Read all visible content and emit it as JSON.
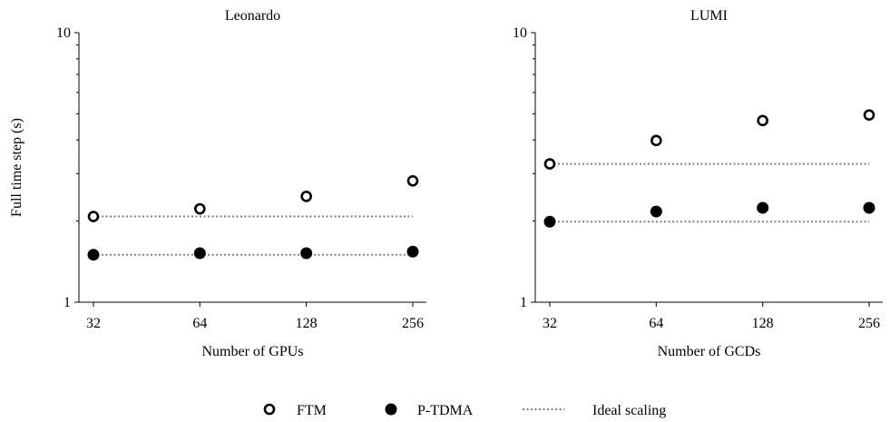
{
  "chart_data": [
    {
      "type": "scatter",
      "title": "Leonardo",
      "xlabel": "Number of GPUs",
      "ylabel": "Full time step (s)",
      "x_scale": "log2",
      "y_scale": "log10",
      "x": [
        32,
        64,
        128,
        256
      ],
      "xlim": [
        32,
        256
      ],
      "ylim": [
        1,
        10
      ],
      "x_tick_labels": [
        "32",
        "64",
        "128",
        "256"
      ],
      "y_tick_labels": [
        "1",
        "10"
      ],
      "series": [
        {
          "name": "FTM",
          "marker": "open-circle",
          "values": [
            2.08,
            2.22,
            2.47,
            2.82
          ]
        },
        {
          "name": "P-TDMA",
          "marker": "filled-circle",
          "values": [
            1.5,
            1.52,
            1.52,
            1.54
          ]
        }
      ],
      "ideal_scaling": [
        2.08,
        1.5
      ]
    },
    {
      "type": "scatter",
      "title": "LUMI",
      "xlabel": "Number of GCDs",
      "ylabel": "",
      "x_scale": "log2",
      "y_scale": "log10",
      "x": [
        32,
        64,
        128,
        256
      ],
      "xlim": [
        32,
        256
      ],
      "ylim": [
        1,
        10
      ],
      "x_tick_labels": [
        "32",
        "64",
        "128",
        "256"
      ],
      "y_tick_labels": [
        "1",
        "10"
      ],
      "series": [
        {
          "name": "FTM",
          "marker": "open-circle",
          "values": [
            3.26,
            3.98,
            4.72,
            4.95
          ]
        },
        {
          "name": "P-TDMA",
          "marker": "filled-circle",
          "values": [
            1.99,
            2.17,
            2.24,
            2.24
          ]
        }
      ],
      "ideal_scaling": [
        3.26,
        1.99
      ]
    }
  ],
  "legend": {
    "placement": "bottom-center",
    "items": [
      "FTM",
      "P-TDMA",
      "Ideal scaling"
    ]
  },
  "colors": {
    "marker": "#000000",
    "ideal_line": "#808080",
    "axis": "#000000"
  }
}
